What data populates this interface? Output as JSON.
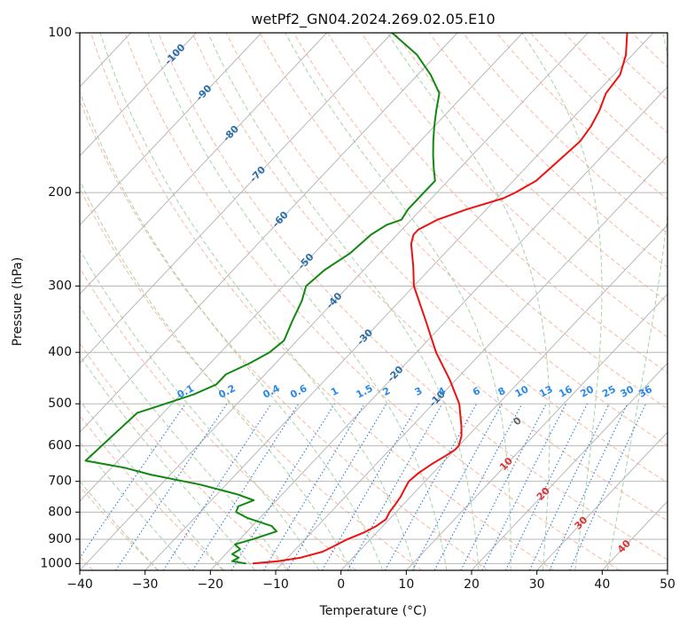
{
  "chart_data": {
    "type": "line",
    "subtype": "skew-t log-p",
    "title": "wetPf2_GN04.2024.269.02.05.E10",
    "xlabel": "Temperature (°C)",
    "ylabel": "Pressure (hPa)",
    "xlim": [
      -40,
      50
    ],
    "ylim_hpa": [
      1030,
      100
    ],
    "y_scale": "log",
    "x_ticks": [
      -40,
      -30,
      -20,
      -10,
      0,
      10,
      20,
      30,
      40,
      50
    ],
    "x_tick_labels": [
      "−40",
      "−30",
      "−20",
      "−10",
      "0",
      "10",
      "20",
      "30",
      "40",
      "50"
    ],
    "y_ticks": [
      100,
      200,
      300,
      400,
      500,
      600,
      700,
      800,
      900,
      1000
    ],
    "y_tick_labels": [
      "100",
      "200",
      "300",
      "400",
      "500",
      "600",
      "700",
      "800",
      "900",
      "1000"
    ],
    "grid": true,
    "colors": {
      "temperature": "#ee1111",
      "dewpoint": "#118811",
      "isotherm": "#b8b8b8",
      "dry_adiabat": "#f4a080",
      "moist_adiabat": "#90c890",
      "mixing_ratio": "#2a7bd8",
      "mixing_label": "#2a8ae8",
      "isotherm_label": "#2a6fa8",
      "mixing_zero_label": "#666666",
      "isotherm_warm_label": "#dd3333"
    },
    "series": [
      {
        "name": "",
        "role": "temperature",
        "points": [
          {
            "p": 1000,
            "t": -14.5
          },
          {
            "p": 990,
            "t": -11
          },
          {
            "p": 975,
            "t": -8
          },
          {
            "p": 950,
            "t": -5.5
          },
          {
            "p": 925,
            "t": -4.5
          },
          {
            "p": 900,
            "t": -3.5
          },
          {
            "p": 875,
            "t": -2
          },
          {
            "p": 850,
            "t": -1
          },
          {
            "p": 825,
            "t": -0.5
          },
          {
            "p": 800,
            "t": -1
          },
          {
            "p": 775,
            "t": -1.2
          },
          {
            "p": 750,
            "t": -1.5
          },
          {
            "p": 725,
            "t": -2
          },
          {
            "p": 700,
            "t": -2.5
          },
          {
            "p": 675,
            "t": -2.2
          },
          {
            "p": 650,
            "t": -1.5
          },
          {
            "p": 625,
            "t": -0.5
          },
          {
            "p": 610,
            "t": 0
          },
          {
            "p": 600,
            "t": 0
          },
          {
            "p": 575,
            "t": -1
          },
          {
            "p": 550,
            "t": -2.5
          },
          {
            "p": 500,
            "t": -6
          },
          {
            "p": 450,
            "t": -11
          },
          {
            "p": 400,
            "t": -17
          },
          {
            "p": 350,
            "t": -23
          },
          {
            "p": 300,
            "t": -30
          },
          {
            "p": 275,
            "t": -33
          },
          {
            "p": 250,
            "t": -36.5
          },
          {
            "p": 240,
            "t": -37.5
          },
          {
            "p": 235,
            "t": -37.5
          },
          {
            "p": 225,
            "t": -36
          },
          {
            "p": 215,
            "t": -33
          },
          {
            "p": 205,
            "t": -29
          },
          {
            "p": 200,
            "t": -28
          },
          {
            "p": 190,
            "t": -26.5
          },
          {
            "p": 175,
            "t": -26
          },
          {
            "p": 160,
            "t": -25.5
          },
          {
            "p": 150,
            "t": -26
          },
          {
            "p": 140,
            "t": -27
          },
          {
            "p": 130,
            "t": -28.5
          },
          {
            "p": 120,
            "t": -29
          },
          {
            "p": 110,
            "t": -31
          },
          {
            "p": 100,
            "t": -34
          }
        ]
      },
      {
        "name": "",
        "role": "dewpoint",
        "points": [
          {
            "p": 1000,
            "t": -15.5
          },
          {
            "p": 990,
            "t": -18
          },
          {
            "p": 975,
            "t": -17.5
          },
          {
            "p": 960,
            "t": -19
          },
          {
            "p": 940,
            "t": -18.5
          },
          {
            "p": 920,
            "t": -20
          },
          {
            "p": 900,
            "t": -18
          },
          {
            "p": 870,
            "t": -15.5
          },
          {
            "p": 850,
            "t": -17
          },
          {
            "p": 820,
            "t": -22
          },
          {
            "p": 800,
            "t": -24.5
          },
          {
            "p": 780,
            "t": -25
          },
          {
            "p": 760,
            "t": -23.5
          },
          {
            "p": 740,
            "t": -27
          },
          {
            "p": 710,
            "t": -34
          },
          {
            "p": 680,
            "t": -43
          },
          {
            "p": 660,
            "t": -48
          },
          {
            "p": 640,
            "t": -55
          },
          {
            "p": 520,
            "t": -54
          },
          {
            "p": 500,
            "t": -51
          },
          {
            "p": 480,
            "t": -48
          },
          {
            "p": 460,
            "t": -46
          },
          {
            "p": 440,
            "t": -46
          },
          {
            "p": 420,
            "t": -44
          },
          {
            "p": 400,
            "t": -42.5
          },
          {
            "p": 380,
            "t": -42
          },
          {
            "p": 350,
            "t": -43.5
          },
          {
            "p": 320,
            "t": -45
          },
          {
            "p": 300,
            "t": -46.5
          },
          {
            "p": 280,
            "t": -46
          },
          {
            "p": 260,
            "t": -44.5
          },
          {
            "p": 240,
            "t": -44
          },
          {
            "p": 230,
            "t": -43
          },
          {
            "p": 225,
            "t": -41.5
          },
          {
            "p": 215,
            "t": -42
          },
          {
            "p": 200,
            "t": -42
          },
          {
            "p": 190,
            "t": -42
          },
          {
            "p": 180,
            "t": -44
          },
          {
            "p": 170,
            "t": -46
          },
          {
            "p": 160,
            "t": -48
          },
          {
            "p": 150,
            "t": -50
          },
          {
            "p": 140,
            "t": -52
          },
          {
            "p": 130,
            "t": -54
          },
          {
            "p": 120,
            "t": -58
          },
          {
            "p": 110,
            "t": -63
          },
          {
            "p": 100,
            "t": -70
          }
        ]
      }
    ],
    "isotherm_labels": [
      {
        "text": "-100",
        "t": -100,
        "p": 110
      },
      {
        "text": "-90",
        "t": -90,
        "p": 130
      },
      {
        "text": "-80",
        "t": -80,
        "p": 155
      },
      {
        "text": "-70",
        "t": -70,
        "p": 185
      },
      {
        "text": "-60",
        "t": -60,
        "p": 225
      },
      {
        "text": "-50",
        "t": -50,
        "p": 270
      },
      {
        "text": "-40",
        "t": -40,
        "p": 320
      },
      {
        "text": "-30",
        "t": -30,
        "p": 375
      },
      {
        "text": "-20",
        "t": -20,
        "p": 440
      },
      {
        "text": "-10",
        "t": -10,
        "p": 490
      }
    ],
    "isotherm_warm_labels": [
      {
        "text": "10",
        "t": 10,
        "p": 650
      },
      {
        "text": "20",
        "t": 20,
        "p": 740
      },
      {
        "text": "30",
        "t": 30,
        "p": 840
      },
      {
        "text": "40",
        "t": 40,
        "p": 930
      }
    ],
    "mixing_ratio_values": [
      0.1,
      0.2,
      0.4,
      0.6,
      1,
      1.5,
      2,
      3,
      4,
      6,
      8,
      10,
      13,
      16,
      20,
      25,
      30,
      36
    ],
    "mixing_ratio_labels": [
      "0.1",
      "0.2",
      "0.4",
      "0.6",
      "1",
      "1.5",
      "2",
      "3",
      "4",
      "6",
      "8",
      "10",
      "13",
      "16",
      "20",
      "25",
      "30",
      "36"
    ],
    "mixing_zero_label": "0"
  }
}
